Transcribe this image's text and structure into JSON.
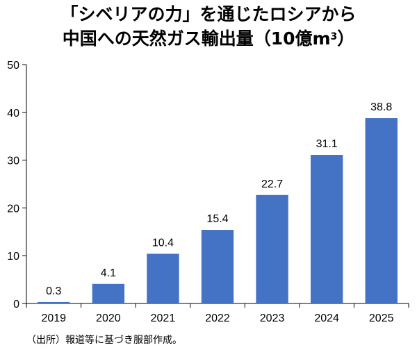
{
  "title": {
    "line1": "「シベリアの力」を通じたロシアから",
    "line2_main": "中国への天然ガス輸出量（10億m",
    "line2_sup": "3",
    "line2_end": "）"
  },
  "source": "（出所）報道等に基づき服部作成。",
  "colors": {
    "bar": "#4472c4",
    "axis": "#000000",
    "gridline": "#000000"
  },
  "chart_data": {
    "type": "bar",
    "title": "「シベリアの力」を通じたロシアから中国への天然ガス輸出量（10億m3）",
    "xlabel": "",
    "ylabel": "",
    "categories": [
      "2019",
      "2020",
      "2021",
      "2022",
      "2023",
      "2024",
      "2025"
    ],
    "values": [
      0.3,
      4.1,
      10.4,
      15.4,
      22.7,
      31.1,
      38.8
    ],
    "value_labels": [
      "0.3",
      "4.1",
      "10.4",
      "15.4",
      "22.7",
      "31.1",
      "38.8"
    ],
    "ylim": [
      0,
      50
    ],
    "yticks": [
      "0",
      "10",
      "20",
      "30",
      "40",
      "50"
    ],
    "ytick_values": [
      0,
      10,
      20,
      30,
      40,
      50
    ],
    "grid": false,
    "legend": "none"
  }
}
